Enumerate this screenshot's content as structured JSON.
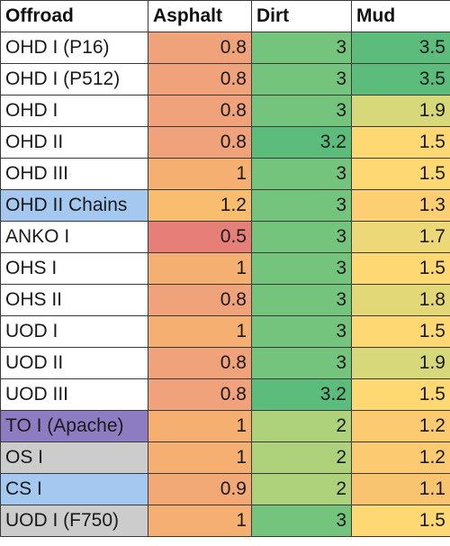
{
  "table": {
    "headers": [
      "Offroad",
      "Asphalt",
      "Dirt",
      "Mud"
    ],
    "rows": [
      {
        "name": "OHD I (P16)",
        "name_bg": "#ffffff",
        "asphalt": "0.8",
        "asphalt_bg": "#f0a37a",
        "dirt": "3",
        "dirt_bg": "#74c47e",
        "mud": "3.5",
        "mud_bg": "#5bbc7c"
      },
      {
        "name": "OHD I (P512)",
        "name_bg": "#ffffff",
        "asphalt": "0.8",
        "asphalt_bg": "#f0a37a",
        "dirt": "3",
        "dirt_bg": "#74c47e",
        "mud": "3.5",
        "mud_bg": "#5bbc7c"
      },
      {
        "name": "OHD I",
        "name_bg": "#ffffff",
        "asphalt": "0.8",
        "asphalt_bg": "#f0a37a",
        "dirt": "3",
        "dirt_bg": "#74c47e",
        "mud": "1.9",
        "mud_bg": "#d7d879"
      },
      {
        "name": "OHD II",
        "name_bg": "#ffffff",
        "asphalt": "0.8",
        "asphalt_bg": "#f0a37a",
        "dirt": "3.2",
        "dirt_bg": "#5bbc7c",
        "mud": "1.5",
        "mud_bg": "#fdd873"
      },
      {
        "name": "OHD III",
        "name_bg": "#ffffff",
        "asphalt": "1",
        "asphalt_bg": "#f5b071",
        "dirt": "3",
        "dirt_bg": "#74c47e",
        "mud": "1.5",
        "mud_bg": "#fdd873"
      },
      {
        "name": "OHD II Chains",
        "name_bg": "#a4c8ef",
        "asphalt": "1.2",
        "asphalt_bg": "#f9bd70",
        "dirt": "3",
        "dirt_bg": "#74c47e",
        "mud": "1.3",
        "mud_bg": "#fccf72"
      },
      {
        "name": "ANKO I",
        "name_bg": "#ffffff",
        "asphalt": "0.5",
        "asphalt_bg": "#e67f78",
        "dirt": "3",
        "dirt_bg": "#74c47e",
        "mud": "1.7",
        "mud_bg": "#ecd877"
      },
      {
        "name": "OHS I",
        "name_bg": "#ffffff",
        "asphalt": "1",
        "asphalt_bg": "#f5b071",
        "dirt": "3",
        "dirt_bg": "#74c47e",
        "mud": "1.5",
        "mud_bg": "#fdd873"
      },
      {
        "name": "OHS II",
        "name_bg": "#ffffff",
        "asphalt": "0.8",
        "asphalt_bg": "#f0a37a",
        "dirt": "3",
        "dirt_bg": "#74c47e",
        "mud": "1.8",
        "mud_bg": "#e2d878"
      },
      {
        "name": "UOD I",
        "name_bg": "#ffffff",
        "asphalt": "1",
        "asphalt_bg": "#f5b071",
        "dirt": "3",
        "dirt_bg": "#74c47e",
        "mud": "1.5",
        "mud_bg": "#fdd873"
      },
      {
        "name": "UOD II",
        "name_bg": "#ffffff",
        "asphalt": "0.8",
        "asphalt_bg": "#f0a37a",
        "dirt": "3",
        "dirt_bg": "#74c47e",
        "mud": "1.9",
        "mud_bg": "#d7d879"
      },
      {
        "name": "UOD III",
        "name_bg": "#ffffff",
        "asphalt": "0.8",
        "asphalt_bg": "#f0a37a",
        "dirt": "3.2",
        "dirt_bg": "#5bbc7c",
        "mud": "1.5",
        "mud_bg": "#fdd873"
      },
      {
        "name": "TO I (Apache)",
        "name_bg": "#8e7cc3",
        "asphalt": "1",
        "asphalt_bg": "#f5b071",
        "dirt": "2",
        "dirt_bg": "#aed27b",
        "mud": "1.2",
        "mud_bg": "#fbca71"
      },
      {
        "name": "OS I",
        "name_bg": "#cccccc",
        "asphalt": "1",
        "asphalt_bg": "#f5b071",
        "dirt": "2",
        "dirt_bg": "#aed27b",
        "mud": "1.2",
        "mud_bg": "#fbca71"
      },
      {
        "name": "CS I",
        "name_bg": "#a4c8ef",
        "asphalt": "0.9",
        "asphalt_bg": "#f2a976",
        "dirt": "2",
        "dirt_bg": "#aed27b",
        "mud": "1.1",
        "mud_bg": "#f9c470"
      },
      {
        "name": "UOD I (F750)",
        "name_bg": "#cccccc",
        "asphalt": "1",
        "asphalt_bg": "#f5b071",
        "dirt": "3",
        "dirt_bg": "#74c47e",
        "mud": "1.5",
        "mud_bg": "#fdd873"
      }
    ]
  }
}
